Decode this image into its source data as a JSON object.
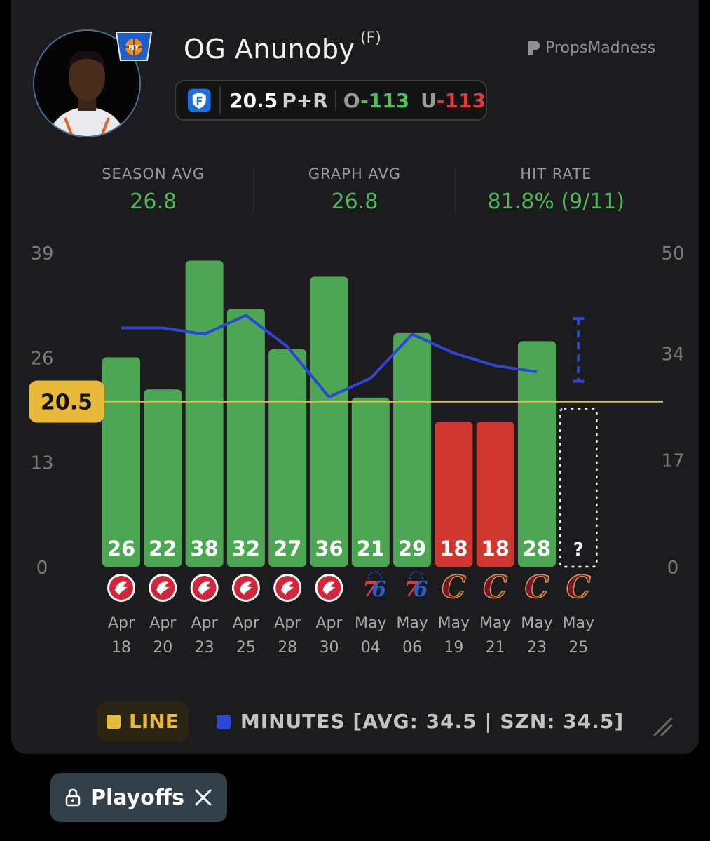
{
  "player": {
    "name": "OG Anunoby",
    "position": "(F)",
    "team_logo": "knicks-logo"
  },
  "brand": {
    "name": "PropsMadness"
  },
  "prop": {
    "book_icon": "fanduel-shield-icon",
    "line": "20.5",
    "market": "P+R",
    "over_label": "O",
    "over_odds": "-113",
    "under_label": "U",
    "under_odds": "-113"
  },
  "stats": [
    {
      "label": "SEASON AVG",
      "value": "26.8"
    },
    {
      "label": "GRAPH AVG",
      "value": "26.8"
    },
    {
      "label": "HIT RATE",
      "value": "81.8% (9/11)"
    }
  ],
  "colors": {
    "hit": "#4ca653",
    "miss": "#d0352f",
    "minutes": "#2a47d6",
    "line": "#e8b93a",
    "positive": "#4ec15c",
    "negative": "#e03a3a"
  },
  "chart_data": {
    "type": "bar",
    "line_value": 20.5,
    "line_label": "20.5",
    "y_left_ticks": [
      "39",
      "26",
      "13",
      "0"
    ],
    "y_right_ticks": [
      "50",
      "34",
      "17",
      "0"
    ],
    "ylim_left": [
      0,
      39
    ],
    "ylim_right": [
      0,
      50
    ],
    "categories": [
      "Apr 18",
      "Apr 20",
      "Apr 23",
      "Apr 25",
      "Apr 28",
      "Apr 30",
      "May 04",
      "May 06",
      "May 19",
      "May 21",
      "May 23",
      "May 25"
    ],
    "cat_top": [
      "Apr",
      "Apr",
      "Apr",
      "Apr",
      "Apr",
      "Apr",
      "May",
      "May",
      "May",
      "May",
      "May",
      "May"
    ],
    "cat_bottom": [
      "18",
      "20",
      "23",
      "25",
      "28",
      "30",
      "04",
      "06",
      "19",
      "21",
      "23",
      "25"
    ],
    "opponents": [
      "hawks",
      "hawks",
      "hawks",
      "hawks",
      "hawks",
      "hawks",
      "76ers",
      "76ers",
      "cavaliers",
      "cavaliers",
      "cavaliers",
      "cavaliers"
    ],
    "series": [
      {
        "name": "P+R",
        "values": [
          26,
          22,
          38,
          32,
          27,
          36,
          21,
          29,
          18,
          18,
          28,
          null
        ]
      },
      {
        "name": "MINUTES",
        "values": [
          38,
          38,
          37,
          40,
          35,
          27,
          30,
          37,
          34,
          32,
          31,
          null
        ]
      }
    ],
    "pending_label": "?",
    "pending_minutes_avg": 34.5
  },
  "legend": {
    "line_label": "LINE",
    "minutes_label": "MINUTES [AVG: 34.5 | SZN: 34.5]"
  },
  "filter": {
    "label": "Playoffs"
  }
}
